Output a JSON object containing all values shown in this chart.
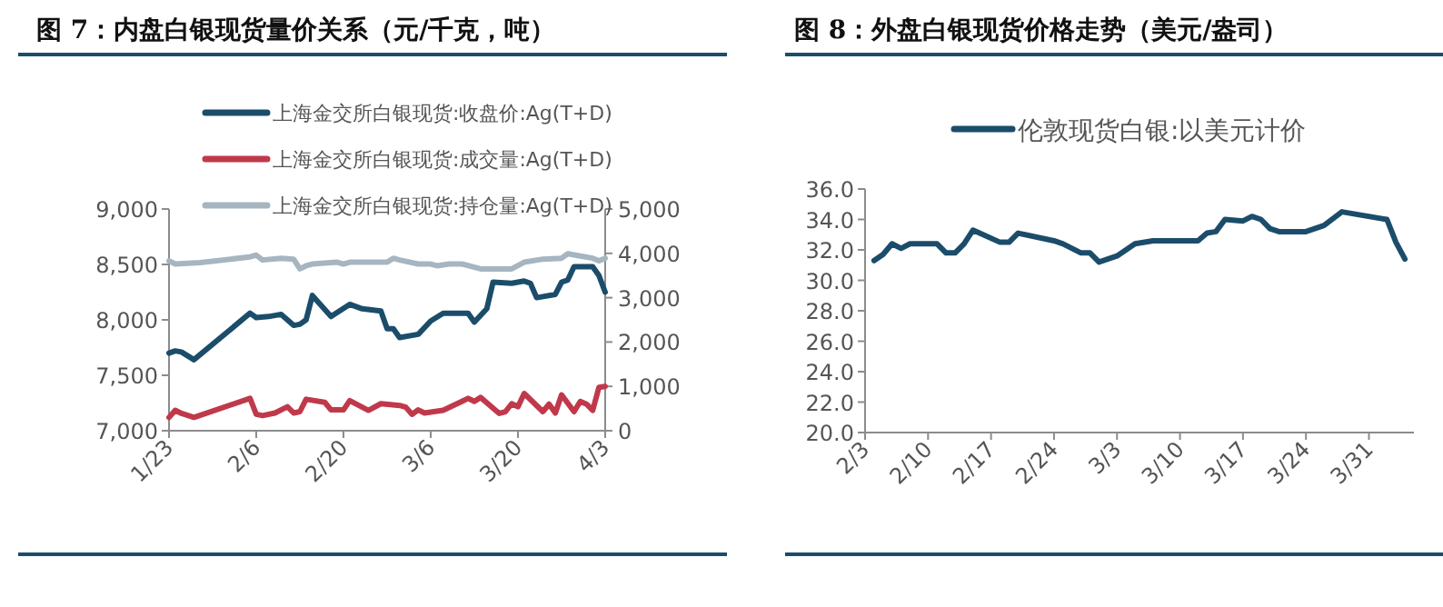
{
  "chart_data": [
    {
      "type": "line",
      "title": "图 7：内盘白银现货量价关系（元/千克，吨）",
      "legend": "top",
      "xlim": [
        "--01-23",
        "--04-03"
      ],
      "xticks": [
        {
          "value": "--01-23",
          "label": "1/23"
        },
        {
          "value": "--02-06",
          "label": "2/6"
        },
        {
          "value": "--02-20",
          "label": "2/20"
        },
        {
          "value": "--03-06",
          "label": "3/6"
        },
        {
          "value": "--03-20",
          "label": "3/20"
        },
        {
          "value": "--04-03",
          "label": "4/3"
        }
      ],
      "ylim": [
        7000,
        9000
      ],
      "yticks": [
        {
          "value": 7000,
          "label": "7,000"
        },
        {
          "value": 7500,
          "label": "7,500"
        },
        {
          "value": 8000,
          "label": "8,000"
        },
        {
          "value": 8500,
          "label": "8,500"
        },
        {
          "value": 9000,
          "label": "9,000"
        }
      ],
      "y2lim": [
        0,
        5000
      ],
      "y2ticks": [
        0,
        {
          "value": 1000,
          "label": "1,000"
        },
        {
          "value": 2000,
          "label": "2,000"
        },
        {
          "value": 3000,
          "label": "3,000"
        },
        {
          "value": 4000,
          "label": "4,000"
        },
        {
          "value": 5000,
          "label": "5,000"
        }
      ],
      "series": [
        {
          "name": "上海金交所白银现货:收盘价:Ag(T+D)",
          "color": "#1b4d6b",
          "x": [
            "--01-23",
            "--01-24",
            "--01-25",
            "--01-27",
            "--02-05",
            "--02-06",
            "--02-08",
            "--02-10",
            "--02-12",
            "--02-13",
            "--02-14",
            "--02-15",
            "--02-18",
            "--02-21",
            "--02-23",
            "--02-26",
            "--02-27",
            "--02-28",
            "--03-01",
            "--03-04",
            "--03-06",
            "--03-08",
            "--03-12",
            "--03-13",
            "--03-15",
            "--03-16",
            "--03-19",
            "--03-21",
            "--03-22",
            "--03-23",
            "--03-26",
            "--03-27",
            "--03-28",
            "--03-29",
            "--04-01",
            "--04-02",
            "--04-03"
          ],
          "values": [
            7700,
            7720,
            7710,
            7640,
            8060,
            8020,
            8030,
            8050,
            7950,
            7960,
            8000,
            8220,
            8030,
            8140,
            8100,
            8080,
            7920,
            7920,
            7840,
            7870,
            7990,
            8060,
            8060,
            7980,
            8100,
            8340,
            8330,
            8350,
            8330,
            8200,
            8230,
            8340,
            8360,
            8480,
            8480,
            8400,
            8250
          ]
        },
        {
          "name": "上海金交所白银现货:成交量:Ag(T+D)",
          "color": "#c0394b",
          "axis": "y2",
          "x": [
            "--01-23",
            "--01-24",
            "--01-25",
            "--01-27",
            "--02-05",
            "--02-06",
            "--02-07",
            "--02-09",
            "--02-11",
            "--02-12",
            "--02-13",
            "--02-14",
            "--02-17",
            "--02-18",
            "--02-20",
            "--02-21",
            "--02-24",
            "--02-26",
            "--03-01",
            "--03-02",
            "--03-03",
            "--03-04",
            "--03-05",
            "--03-08",
            "--03-11",
            "--03-12",
            "--03-13",
            "--03-14",
            "--03-17",
            "--03-18",
            "--03-19",
            "--03-20",
            "--03-21",
            "--03-24",
            "--03-25",
            "--03-26",
            "--03-27",
            "--03-29",
            "--03-30",
            "--03-31",
            "--04-01",
            "--04-02",
            "--04-03"
          ],
          "values": [
            300,
            460,
            390,
            300,
            730,
            370,
            340,
            400,
            540,
            400,
            430,
            710,
            640,
            470,
            470,
            680,
            460,
            610,
            570,
            530,
            370,
            470,
            400,
            460,
            660,
            730,
            660,
            750,
            390,
            430,
            610,
            540,
            840,
            430,
            600,
            400,
            810,
            430,
            660,
            600,
            460,
            980,
            1000
          ]
        },
        {
          "name": "上海金交所白银现货:持仓量:Ag(T+D)",
          "color": "#a6b5bf",
          "axis": "y2",
          "x": [
            "--01-23",
            "--01-24",
            "--01-28",
            "--02-05",
            "--02-06",
            "--02-07",
            "--02-10",
            "--02-12",
            "--02-13",
            "--02-14",
            "--02-15",
            "--02-19",
            "--02-20",
            "--02-21",
            "--02-27",
            "--02-28",
            "--03-01",
            "--03-04",
            "--03-06",
            "--03-07",
            "--03-09",
            "--03-11",
            "--03-14",
            "--03-19",
            "--03-21",
            "--03-24",
            "--03-27",
            "--03-28",
            "--03-30",
            "--04-01",
            "--04-02",
            "--04-03"
          ],
          "values": [
            3830,
            3760,
            3790,
            3920,
            3960,
            3850,
            3890,
            3870,
            3650,
            3720,
            3760,
            3800,
            3760,
            3800,
            3800,
            3890,
            3850,
            3760,
            3760,
            3720,
            3760,
            3760,
            3650,
            3650,
            3800,
            3870,
            3890,
            3990,
            3940,
            3890,
            3830,
            3890
          ]
        }
      ]
    },
    {
      "type": "line",
      "title": "图 8：外盘白银现货价格走势（美元/盎司）",
      "legend": "top",
      "xlim": [
        "--02-03",
        "--04-05"
      ],
      "xticks": [
        {
          "value": "--02-03",
          "label": "2/3"
        },
        {
          "value": "--02-10",
          "label": "2/10"
        },
        {
          "value": "--02-17",
          "label": "2/17"
        },
        {
          "value": "--02-24",
          "label": "2/24"
        },
        {
          "value": "--03-03",
          "label": "3/3"
        },
        {
          "value": "--03-10",
          "label": "3/10"
        },
        {
          "value": "--03-17",
          "label": "3/17"
        },
        {
          "value": "--03-24",
          "label": "3/24"
        },
        {
          "value": "--03-31",
          "label": "3/31"
        }
      ],
      "ylim": [
        20,
        36
      ],
      "yticks": [
        {
          "value": 20,
          "label": "20.0"
        },
        {
          "value": 22,
          "label": "22.0"
        },
        {
          "value": 24,
          "label": "24.0"
        },
        {
          "value": 26,
          "label": "26.0"
        },
        {
          "value": 28,
          "label": "28.0"
        },
        {
          "value": 30,
          "label": "30.0"
        },
        {
          "value": 32,
          "label": "32.0"
        },
        {
          "value": 34,
          "label": "34.0"
        },
        {
          "value": 36,
          "label": "36.0"
        }
      ],
      "series": [
        {
          "name": "伦敦现货白银:以美元计价",
          "color": "#1b4d6b",
          "x": [
            "--02-04",
            "--02-05",
            "--02-06",
            "--02-07",
            "--02-08",
            "--02-11",
            "--02-12",
            "--02-13",
            "--02-14",
            "--02-15",
            "--02-18",
            "--02-19",
            "--02-20",
            "--02-24",
            "--02-25",
            "--02-27",
            "--02-28",
            "--03-01",
            "--03-03",
            "--03-05",
            "--03-07",
            "--03-12",
            "--03-13",
            "--03-14",
            "--03-15",
            "--03-17",
            "--03-18",
            "--03-19",
            "--03-20",
            "--03-21",
            "--03-24",
            "--03-26",
            "--03-28",
            "--04-02",
            "--04-03",
            "--04-04"
          ],
          "values": [
            31.3,
            31.7,
            32.4,
            32.1,
            32.4,
            32.4,
            31.8,
            31.8,
            32.4,
            33.3,
            32.5,
            32.5,
            33.1,
            32.6,
            32.4,
            31.8,
            31.8,
            31.2,
            31.6,
            32.4,
            32.6,
            32.6,
            33.1,
            33.2,
            34.0,
            33.9,
            34.2,
            34.0,
            33.4,
            33.2,
            33.2,
            33.6,
            34.5,
            34.0,
            32.5,
            31.4
          ]
        }
      ]
    }
  ]
}
